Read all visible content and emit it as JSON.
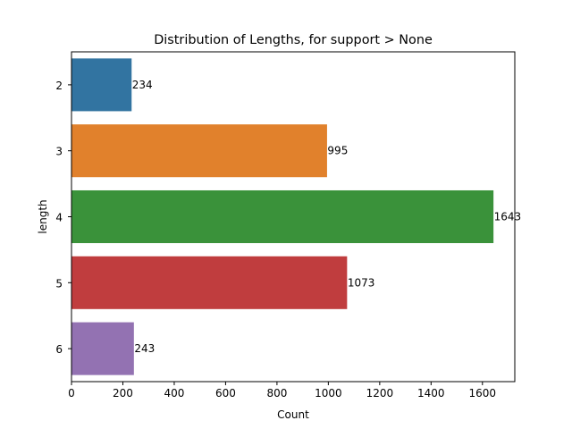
{
  "chart_data": {
    "type": "bar",
    "orientation": "horizontal",
    "title": "Distribution of Lengths, for support > None",
    "xlabel": "Count",
    "ylabel": "length",
    "xlim": [
      0,
      1726
    ],
    "x_ticks": [
      0,
      200,
      400,
      600,
      800,
      1000,
      1200,
      1400,
      1600
    ],
    "categories": [
      "2",
      "3",
      "4",
      "5",
      "6"
    ],
    "values": [
      234,
      995,
      1643,
      1073,
      243
    ],
    "data_labels": [
      "234",
      "995",
      "1643",
      "1073",
      "243"
    ],
    "colors": [
      "#3274a1",
      "#e1812c",
      "#3a923a",
      "#c03d3e",
      "#9372b2"
    ],
    "grid": false,
    "legend": "none"
  }
}
